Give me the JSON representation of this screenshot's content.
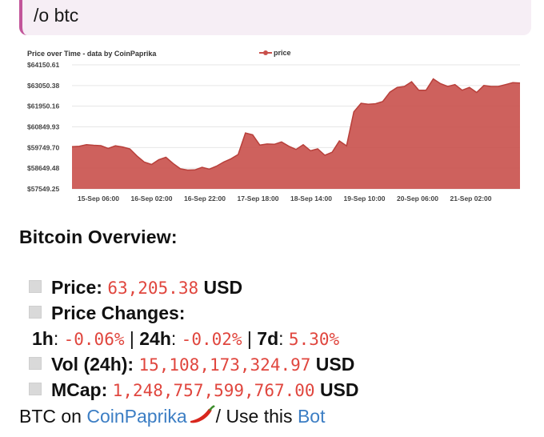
{
  "message": {
    "command": "/o btc"
  },
  "chart_data": {
    "type": "area",
    "title": "Price over Time - data by CoinPaprika",
    "legend": "price",
    "legend_position": "top",
    "yticks": [
      "$64150.61",
      "$63050.38",
      "$61950.16",
      "$60849.93",
      "$59749.70",
      "$58649.48",
      "$57549.25"
    ],
    "ylim": [
      57549.25,
      64150.61
    ],
    "xticks": [
      "15-Sep 06:00",
      "16-Sep 02:00",
      "16-Sep 22:00",
      "17-Sep 18:00",
      "18-Sep 14:00",
      "19-Sep 10:00",
      "20-Sep 06:00",
      "21-Sep 02:00"
    ],
    "series": [
      {
        "name": "price",
        "values": [
          59800,
          59820,
          59900,
          59870,
          59850,
          59700,
          59840,
          59780,
          59680,
          59300,
          58980,
          58850,
          59100,
          59230,
          58900,
          58620,
          58550,
          58560,
          58700,
          58600,
          58760,
          58980,
          59150,
          59380,
          60520,
          60430,
          59880,
          59940,
          59920,
          60050,
          59820,
          59650,
          59900,
          59580,
          59680,
          59340,
          59500,
          60100,
          59840,
          61650,
          62100,
          62050,
          62080,
          62200,
          62700,
          62950,
          63000,
          63250,
          62800,
          62800,
          63400,
          63150,
          63000,
          63100,
          62800,
          62950,
          62680,
          63050,
          63000,
          63000,
          63100,
          63200,
          63180
        ]
      }
    ],
    "color": "#c9504b"
  },
  "overview": {
    "heading": "Bitcoin Overview:",
    "price_label": "Price:",
    "price_value": "63,205.38",
    "price_unit": "USD",
    "changes_label": "Price Changes:",
    "h1_label": "1h",
    "h1_value": "-0.06%",
    "h24_label": "24h",
    "h24_value": "-0.02%",
    "d7_label": "7d",
    "d7_value": "5.30%",
    "vol_label": "Vol (24h):",
    "vol_value": "15,108,173,324.97",
    "vol_unit": "USD",
    "mcap_label": "MCap:",
    "mcap_value": "1,248,757,599,767.00",
    "mcap_unit": "USD"
  },
  "footer": {
    "prefix": "BTC on",
    "link1": "CoinPaprika",
    "separator": "/ Use this",
    "link2": "Bot"
  }
}
